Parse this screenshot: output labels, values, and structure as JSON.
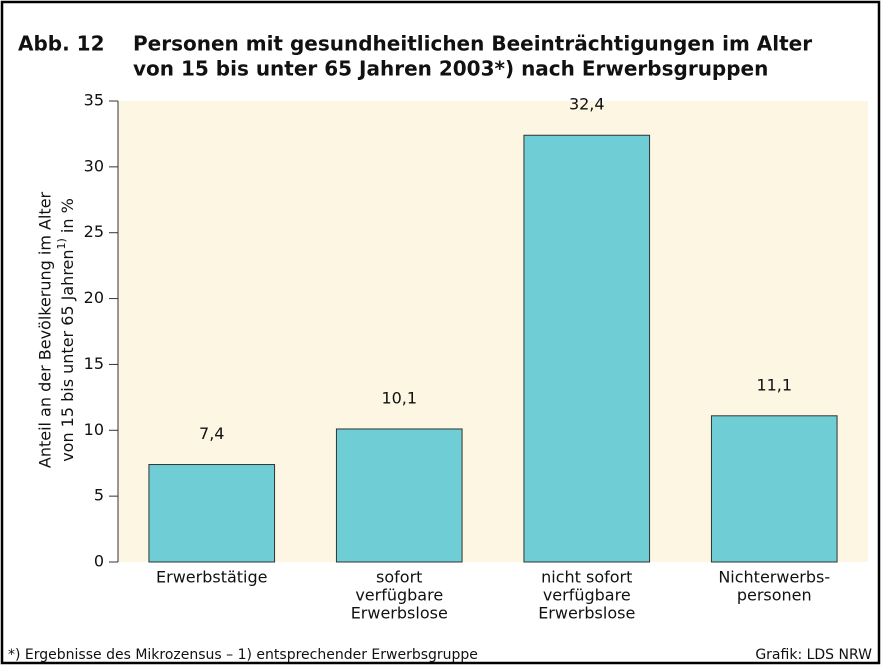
{
  "chart_data": {
    "type": "bar",
    "figure_label": "Abb. 12",
    "title": [
      "Personen mit gesundheitlichen Beeinträchtigungen im Alter",
      "von 15 bis unter 65 Jahren 2003*) nach Erwerbsgruppen"
    ],
    "y_label": [
      "Anteil an der Bevölkerung im Alter",
      "von 15 bis unter 65 Jahren",
      "1)",
      " in %"
    ],
    "categories": [
      [
        "Erwerbstätige"
      ],
      [
        "sofort",
        "verfügbare",
        "Erwerbslose"
      ],
      [
        "nicht sofort",
        "verfügbare",
        "Erwerbslose"
      ],
      [
        "Nichterwerbs-",
        "personen"
      ]
    ],
    "values": [
      7.4,
      10.1,
      32.4,
      11.1
    ],
    "value_labels": [
      "7,4",
      "10,1",
      "32,4",
      "11,1"
    ],
    "color": "#6ecdd5",
    "ylim": [
      0,
      35
    ],
    "yticks": [
      0,
      5,
      10,
      15,
      20,
      25,
      30,
      35
    ],
    "footnote": "*) Ergebnisse des Mikrozensus – 1) entsprechender Erwerbsgruppe",
    "source": "Grafik: LDS NRW"
  }
}
